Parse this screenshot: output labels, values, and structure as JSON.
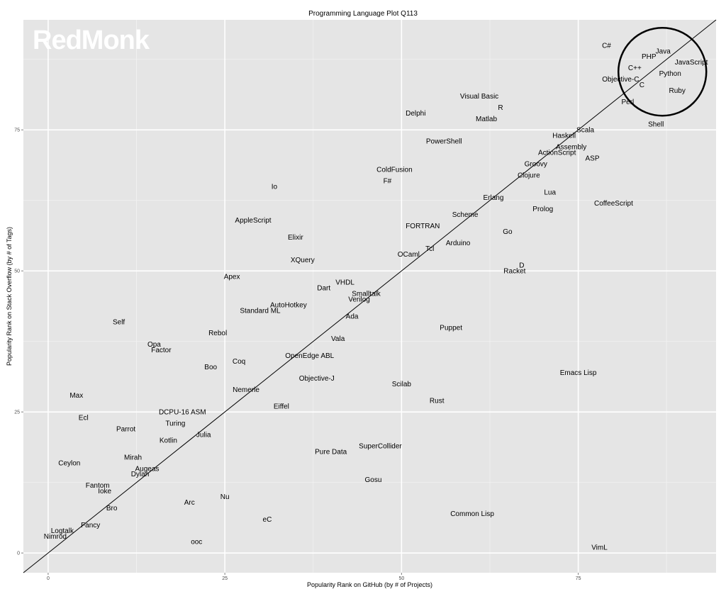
{
  "chart_data": {
    "type": "scatter",
    "title": "Programming Language Plot Q113",
    "xlabel": "Popularity Rank on GitHub (by # of Projects)",
    "ylabel": "Popularity Rank on Stack Overflow (by # of Tags)",
    "xlim": [
      -3.5,
      94.5
    ],
    "ylim": [
      -3.5,
      94.5
    ],
    "xticks": [
      "0",
      "25",
      "50",
      "75"
    ],
    "yticks": [
      "0",
      "25",
      "50",
      "75"
    ],
    "grid": true,
    "trend_line": "diagonal y = x",
    "highlight": "circle around top-right cluster",
    "logo_text": "RedMonk",
    "points": [
      {
        "label": "C#",
        "x": 79,
        "y": 90
      },
      {
        "label": "Java",
        "x": 87,
        "y": 89
      },
      {
        "label": "PHP",
        "x": 85,
        "y": 88
      },
      {
        "label": "JavaScript",
        "x": 91,
        "y": 87
      },
      {
        "label": "C++",
        "x": 83,
        "y": 86
      },
      {
        "label": "Python",
        "x": 88,
        "y": 85
      },
      {
        "label": "Objective-C",
        "x": 81,
        "y": 84
      },
      {
        "label": "C",
        "x": 84,
        "y": 83
      },
      {
        "label": "Ruby",
        "x": 89,
        "y": 82
      },
      {
        "label": "Perl",
        "x": 82,
        "y": 80
      },
      {
        "label": "Visual Basic",
        "x": 61,
        "y": 81
      },
      {
        "label": "R",
        "x": 64,
        "y": 79
      },
      {
        "label": "Delphi",
        "x": 52,
        "y": 78
      },
      {
        "label": "Matlab",
        "x": 62,
        "y": 77
      },
      {
        "label": "Shell",
        "x": 86,
        "y": 76
      },
      {
        "label": "Scala",
        "x": 76,
        "y": 75
      },
      {
        "label": "Haskell",
        "x": 73,
        "y": 74
      },
      {
        "label": "PowerShell",
        "x": 56,
        "y": 73
      },
      {
        "label": "Assembly",
        "x": 74,
        "y": 72
      },
      {
        "label": "ActionScript",
        "x": 72,
        "y": 71
      },
      {
        "label": "ASP",
        "x": 77,
        "y": 70
      },
      {
        "label": "Groovy",
        "x": 69,
        "y": 69
      },
      {
        "label": "ColdFusion",
        "x": 49,
        "y": 68
      },
      {
        "label": "Clojure",
        "x": 68,
        "y": 67
      },
      {
        "label": "F#",
        "x": 48,
        "y": 66
      },
      {
        "label": "Io",
        "x": 32,
        "y": 65
      },
      {
        "label": "Lua",
        "x": 71,
        "y": 64
      },
      {
        "label": "Erlang",
        "x": 63,
        "y": 63
      },
      {
        "label": "CoffeeScript",
        "x": 80,
        "y": 62
      },
      {
        "label": "Prolog",
        "x": 70,
        "y": 61
      },
      {
        "label": "Scheme",
        "x": 59,
        "y": 60
      },
      {
        "label": "AppleScript",
        "x": 29,
        "y": 59
      },
      {
        "label": "FORTRAN",
        "x": 53,
        "y": 58
      },
      {
        "label": "Go",
        "x": 65,
        "y": 57
      },
      {
        "label": "Elixir",
        "x": 35,
        "y": 56
      },
      {
        "label": "Arduino",
        "x": 58,
        "y": 55
      },
      {
        "label": "Tcl",
        "x": 54,
        "y": 54
      },
      {
        "label": "OCaml",
        "x": 51,
        "y": 53
      },
      {
        "label": "XQuery",
        "x": 36,
        "y": 52
      },
      {
        "label": "D",
        "x": 67,
        "y": 51
      },
      {
        "label": "Racket",
        "x": 66,
        "y": 50
      },
      {
        "label": "Apex",
        "x": 26,
        "y": 49
      },
      {
        "label": "VHDL",
        "x": 42,
        "y": 48
      },
      {
        "label": "Dart",
        "x": 39,
        "y": 47
      },
      {
        "label": "Smalltalk",
        "x": 45,
        "y": 46
      },
      {
        "label": "Verilog",
        "x": 44,
        "y": 45
      },
      {
        "label": "AutoHotkey",
        "x": 34,
        "y": 44
      },
      {
        "label": "Standard ML",
        "x": 30,
        "y": 43
      },
      {
        "label": "Ada",
        "x": 43,
        "y": 42
      },
      {
        "label": "Self",
        "x": 10,
        "y": 41
      },
      {
        "label": "Puppet",
        "x": 57,
        "y": 40
      },
      {
        "label": "Rebol",
        "x": 24,
        "y": 39
      },
      {
        "label": "Vala",
        "x": 41,
        "y": 38
      },
      {
        "label": "Opa",
        "x": 15,
        "y": 37
      },
      {
        "label": "Factor",
        "x": 16,
        "y": 36
      },
      {
        "label": "OpenEdge ABL",
        "x": 37,
        "y": 35
      },
      {
        "label": "Coq",
        "x": 27,
        "y": 34
      },
      {
        "label": "Boo",
        "x": 23,
        "y": 33
      },
      {
        "label": "Emacs Lisp",
        "x": 75,
        "y": 32
      },
      {
        "label": "Objective-J",
        "x": 38,
        "y": 31
      },
      {
        "label": "Scilab",
        "x": 50,
        "y": 30
      },
      {
        "label": "Nemerle",
        "x": 28,
        "y": 29
      },
      {
        "label": "Max",
        "x": 4,
        "y": 28
      },
      {
        "label": "Rust",
        "x": 55,
        "y": 27
      },
      {
        "label": "Eiffel",
        "x": 33,
        "y": 26
      },
      {
        "label": "DCPU-16 ASM",
        "x": 19,
        "y": 25
      },
      {
        "label": "Ecl",
        "x": 5,
        "y": 24
      },
      {
        "label": "Turing",
        "x": 18,
        "y": 23
      },
      {
        "label": "Parrot",
        "x": 11,
        "y": 22
      },
      {
        "label": "Julia",
        "x": 22,
        "y": 21
      },
      {
        "label": "Kotlin",
        "x": 17,
        "y": 20
      },
      {
        "label": "SuperCollider",
        "x": 47,
        "y": 19
      },
      {
        "label": "Pure Data",
        "x": 40,
        "y": 18
      },
      {
        "label": "Mirah",
        "x": 12,
        "y": 17
      },
      {
        "label": "Ceylon",
        "x": 3,
        "y": 16
      },
      {
        "label": "Augeas",
        "x": 14,
        "y": 15
      },
      {
        "label": "Dylan",
        "x": 13,
        "y": 14
      },
      {
        "label": "Gosu",
        "x": 46,
        "y": 13
      },
      {
        "label": "Fantom",
        "x": 7,
        "y": 12
      },
      {
        "label": "Ioke",
        "x": 8,
        "y": 11
      },
      {
        "label": "Nu",
        "x": 25,
        "y": 10
      },
      {
        "label": "Arc",
        "x": 20,
        "y": 9
      },
      {
        "label": "Bro",
        "x": 9,
        "y": 8
      },
      {
        "label": "Common Lisp",
        "x": 60,
        "y": 7
      },
      {
        "label": "eC",
        "x": 31,
        "y": 6
      },
      {
        "label": "Fancy",
        "x": 6,
        "y": 5
      },
      {
        "label": "Logtalk",
        "x": 2,
        "y": 4
      },
      {
        "label": "Nimrod",
        "x": 1,
        "y": 3
      },
      {
        "label": "ooc",
        "x": 21,
        "y": 2
      },
      {
        "label": "VimL",
        "x": 78,
        "y": 1
      }
    ]
  }
}
